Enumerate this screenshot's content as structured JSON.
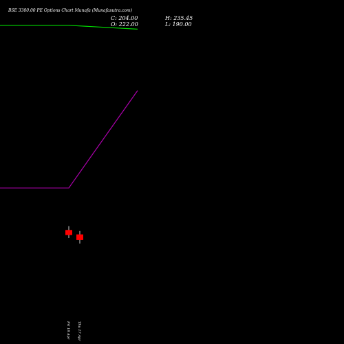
{
  "header": {
    "title": "BSE 3300.00 PE Options Chart Munafa (Munafasutra.com)",
    "close": "C: 204.00",
    "open": "O: 222.00",
    "high": "H: 235.45",
    "low": "L: 190.00"
  },
  "colors": {
    "background": "#000000",
    "text": "#ffffff",
    "line1": "#00dd00",
    "line2": "#aa00aa",
    "candle_down": "#ff0000",
    "wick": "#ffffff"
  },
  "chart_data": {
    "type": "candlestick",
    "title": "BSE 3300.00 PE Options Chart Munafa (Munafasutra.com)",
    "ylim": [
      150,
      1050
    ],
    "candles": [
      {
        "date": "Fri 18 Apr",
        "open": 238.0,
        "high": 253.0,
        "low": 210.0,
        "close": 222.0
      },
      {
        "date": "Thu 17 Apr",
        "open": 222.0,
        "high": 235.45,
        "low": 190.0,
        "close": 204.0
      }
    ],
    "lines": [
      {
        "color": "#00dd00",
        "points": [
          {
            "x": 0,
            "value": 983
          },
          {
            "x": 100,
            "value": 983
          },
          {
            "x": 200,
            "value": 969
          }
        ]
      },
      {
        "color": "#aa00aa",
        "points": [
          {
            "x": 0,
            "value": 392
          },
          {
            "x": 100,
            "value": 392
          },
          {
            "x": 200,
            "value": 746
          }
        ]
      }
    ]
  }
}
